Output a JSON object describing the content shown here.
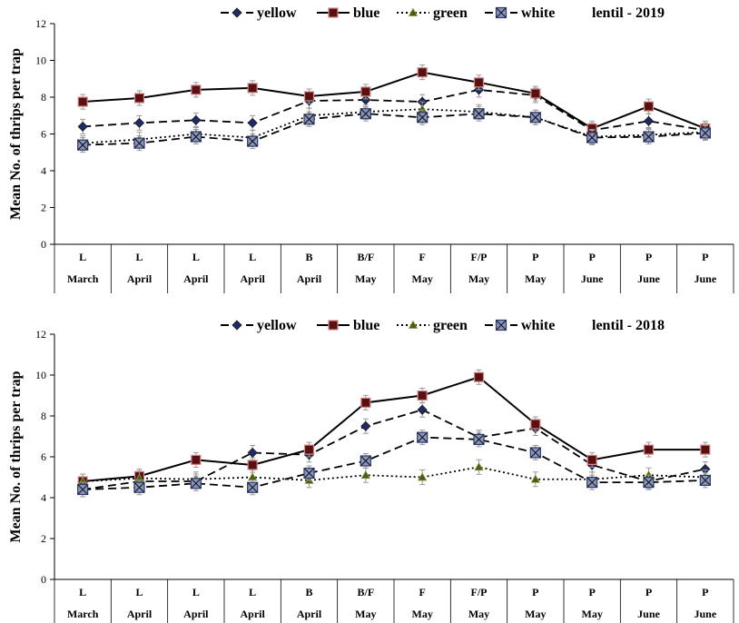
{
  "chart_data": [
    {
      "type": "line",
      "title": "lentil - 2019",
      "ylabel": "Mean No. of thrips per trap",
      "xlabel": "",
      "ylim": [
        0,
        12
      ],
      "yticks": [
        0,
        2,
        4,
        6,
        8,
        10,
        12
      ],
      "categories": [
        "L",
        "L",
        "L",
        "L",
        "B",
        "B/F",
        "F",
        "F/P",
        "P",
        "P",
        "P",
        "P"
      ],
      "months": [
        "March",
        "April",
        "April",
        "April",
        "April",
        "May",
        "May",
        "May",
        "May",
        "June",
        "June",
        "June"
      ],
      "legend_position": "top",
      "grid": false,
      "series": [
        {
          "name": "yellow",
          "style": "dashed",
          "marker": "diamond",
          "color": "#1f2a66",
          "values": [
            6.4,
            6.6,
            6.75,
            6.6,
            7.8,
            7.85,
            7.75,
            8.4,
            8.1,
            6.2,
            6.7,
            6.2
          ]
        },
        {
          "name": "blue",
          "style": "solid",
          "marker": "square",
          "color": "#5a1010",
          "values": [
            7.75,
            7.95,
            8.4,
            8.5,
            8.05,
            8.3,
            9.35,
            8.8,
            8.2,
            6.3,
            7.5,
            6.3
          ]
        },
        {
          "name": "green",
          "style": "dotted",
          "marker": "triangle",
          "color": "#4a5a1a",
          "values": [
            5.5,
            5.7,
            6.0,
            5.8,
            7.0,
            7.2,
            7.35,
            7.2,
            6.9,
            5.85,
            5.95,
            6.1
          ]
        },
        {
          "name": "white",
          "style": "dashed",
          "marker": "xsquare",
          "color": "#2a3a6a",
          "values": [
            5.4,
            5.5,
            5.85,
            5.6,
            6.8,
            7.1,
            6.9,
            7.1,
            6.9,
            5.8,
            5.85,
            6.05
          ]
        }
      ]
    },
    {
      "type": "line",
      "title": "lentil - 2018",
      "ylabel": "Mean No. of thrips per trap",
      "xlabel": "",
      "ylim": [
        0,
        12
      ],
      "yticks": [
        0,
        2,
        4,
        6,
        8,
        10,
        12
      ],
      "categories": [
        "L",
        "L",
        "L",
        "L",
        "B",
        "B/F",
        "F",
        "F/P",
        "P",
        "P",
        "P",
        "P"
      ],
      "months": [
        "March",
        "April",
        "April",
        "April",
        "April",
        "May",
        "May",
        "May",
        "May",
        "May",
        "June",
        "June"
      ],
      "legend_position": "top",
      "grid": false,
      "series": [
        {
          "name": "yellow",
          "style": "dashed",
          "marker": "diamond",
          "color": "#1f2a66",
          "values": [
            4.4,
            4.8,
            4.8,
            6.2,
            6.1,
            7.5,
            8.3,
            6.95,
            7.4,
            5.6,
            4.8,
            5.4
          ]
        },
        {
          "name": "blue",
          "style": "solid",
          "marker": "square",
          "color": "#5a1010",
          "values": [
            4.8,
            5.05,
            5.85,
            5.6,
            6.35,
            8.65,
            9.0,
            9.9,
            7.6,
            5.85,
            6.35,
            6.35
          ]
        },
        {
          "name": "green",
          "style": "dotted",
          "marker": "triangle",
          "color": "#4a5a1a",
          "values": [
            4.8,
            4.95,
            4.9,
            5.0,
            4.85,
            5.1,
            5.0,
            5.5,
            4.9,
            4.9,
            5.1,
            5.0
          ]
        },
        {
          "name": "white",
          "style": "dashed",
          "marker": "xsquare",
          "color": "#2a3a6a",
          "values": [
            4.4,
            4.5,
            4.7,
            4.5,
            5.2,
            5.8,
            6.95,
            6.85,
            6.2,
            4.75,
            4.75,
            4.85
          ]
        }
      ]
    }
  ]
}
